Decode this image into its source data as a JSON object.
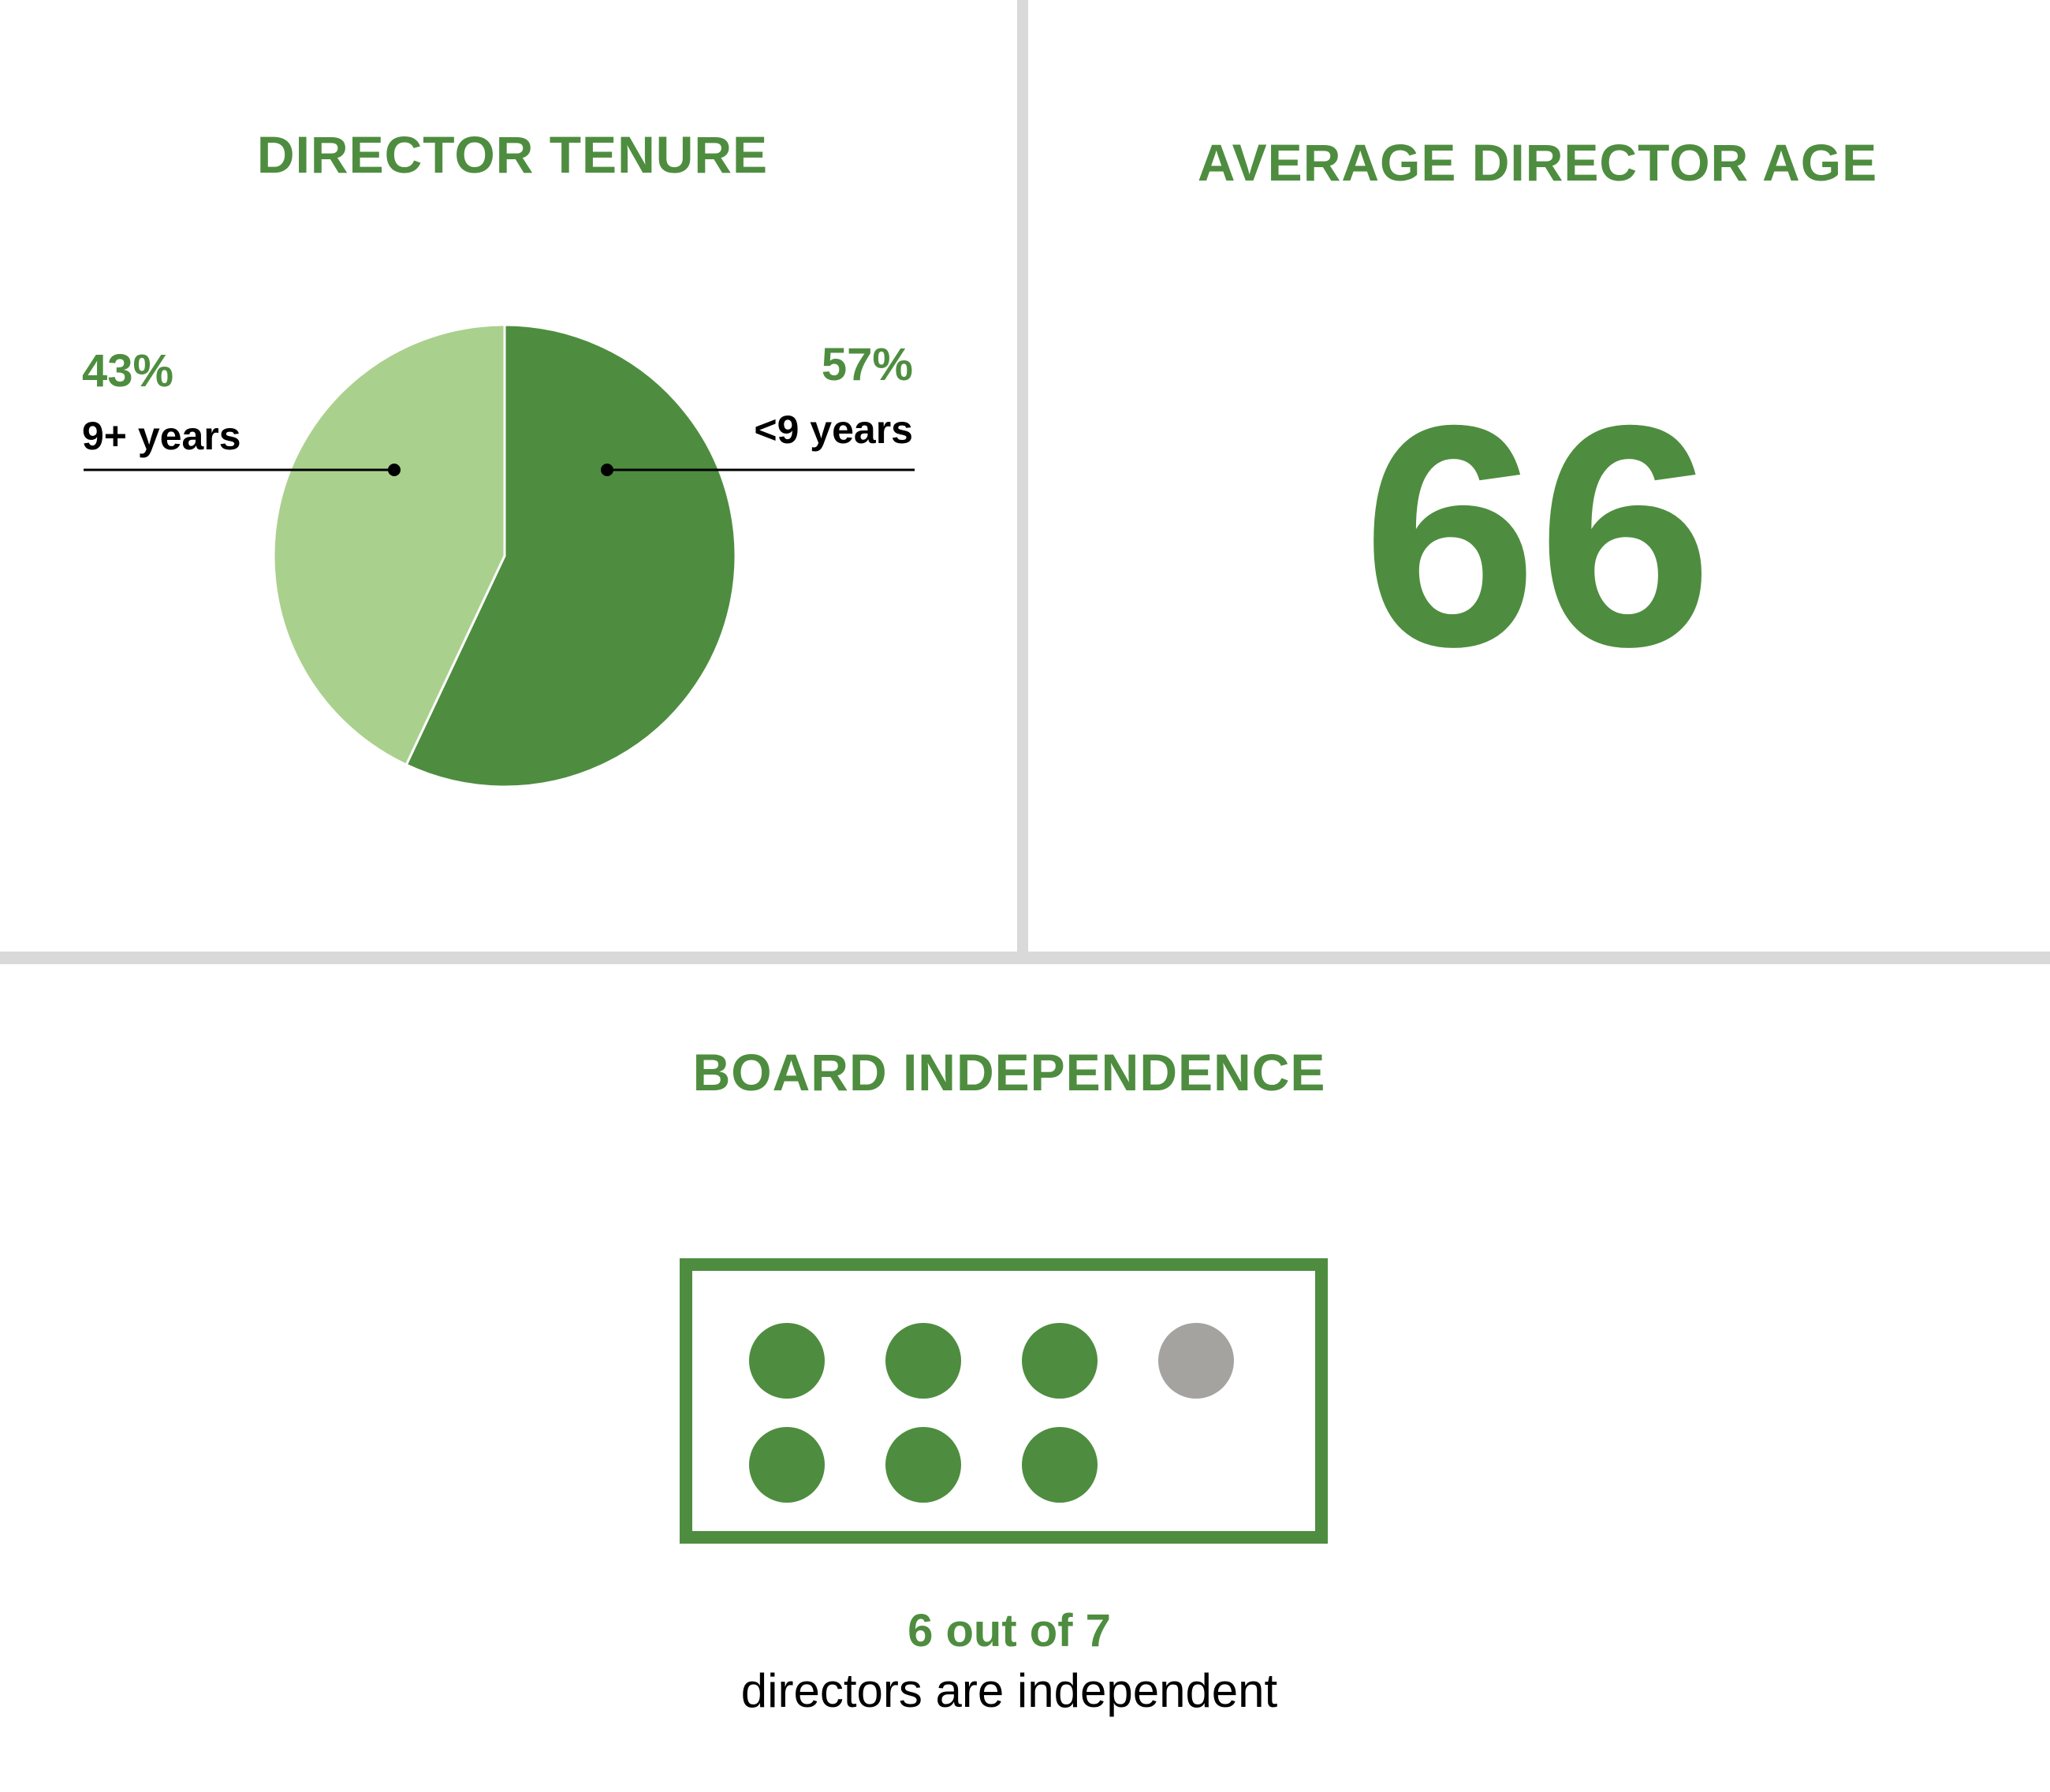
{
  "colors": {
    "accent": "#4e8d3f",
    "light_green": "#aad08e",
    "grey_dot": "#a5a3a0",
    "divider": "#d9d9d9"
  },
  "tenure": {
    "title": "DIRECTOR TENURE"
  },
  "age": {
    "title": "AVERAGE DIRECTOR AGE",
    "value": "66"
  },
  "independence": {
    "title": "BOARD INDEPENDENCE",
    "count_text": "6 out of 7",
    "caption": "directors are independent",
    "independent": 6,
    "total": 7
  },
  "chart_data": [
    {
      "type": "pie",
      "title": "DIRECTOR TENURE",
      "categories": [
        "<9 years",
        "9+ years"
      ],
      "values": [
        57,
        43
      ],
      "value_labels": [
        "57%",
        "43%"
      ],
      "colors": [
        "#4e8d3f",
        "#aad08e"
      ],
      "legend": "none"
    }
  ]
}
